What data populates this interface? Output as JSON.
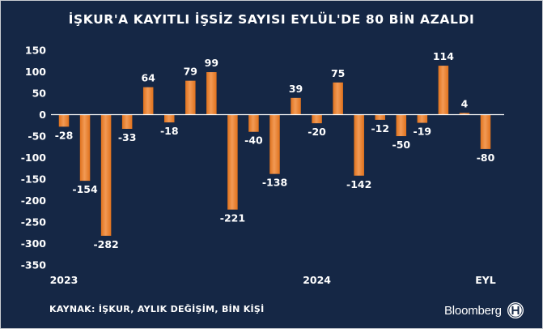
{
  "title": "İŞKUR'A KAYITLI İŞSİZ SAYISI EYLÜL'DE 80 BİN AZALDI",
  "source": "KAYNAK: İŞKUR, AYLIK DEĞİŞİM, BİN KİŞİ",
  "brand": "Bloomberg",
  "colors": {
    "background": "#152745",
    "bar": "#e0721d",
    "bar_highlight": "#f29a55",
    "axis": "#ffffff"
  },
  "chart_data": {
    "type": "bar",
    "title": "İŞKUR'A KAYITLI İŞSİZ SAYISI EYLÜL'DE 80 BİN AZALDI",
    "values": [
      -28,
      -154,
      -282,
      -33,
      64,
      -18,
      79,
      99,
      -221,
      -40,
      -138,
      39,
      -20,
      75,
      -142,
      -12,
      -50,
      -19,
      114,
      4,
      -80
    ],
    "x_tick_labels": [
      {
        "index": 0,
        "label": "2023"
      },
      {
        "index": 12,
        "label": "2024"
      },
      {
        "index": 20,
        "label": "EYL"
      }
    ],
    "ylim": [
      -350,
      150
    ],
    "yticks": [
      150,
      100,
      50,
      0,
      -50,
      -100,
      -150,
      -200,
      -250,
      -300,
      -350
    ],
    "grid": false,
    "xlabel": "",
    "ylabel": ""
  }
}
